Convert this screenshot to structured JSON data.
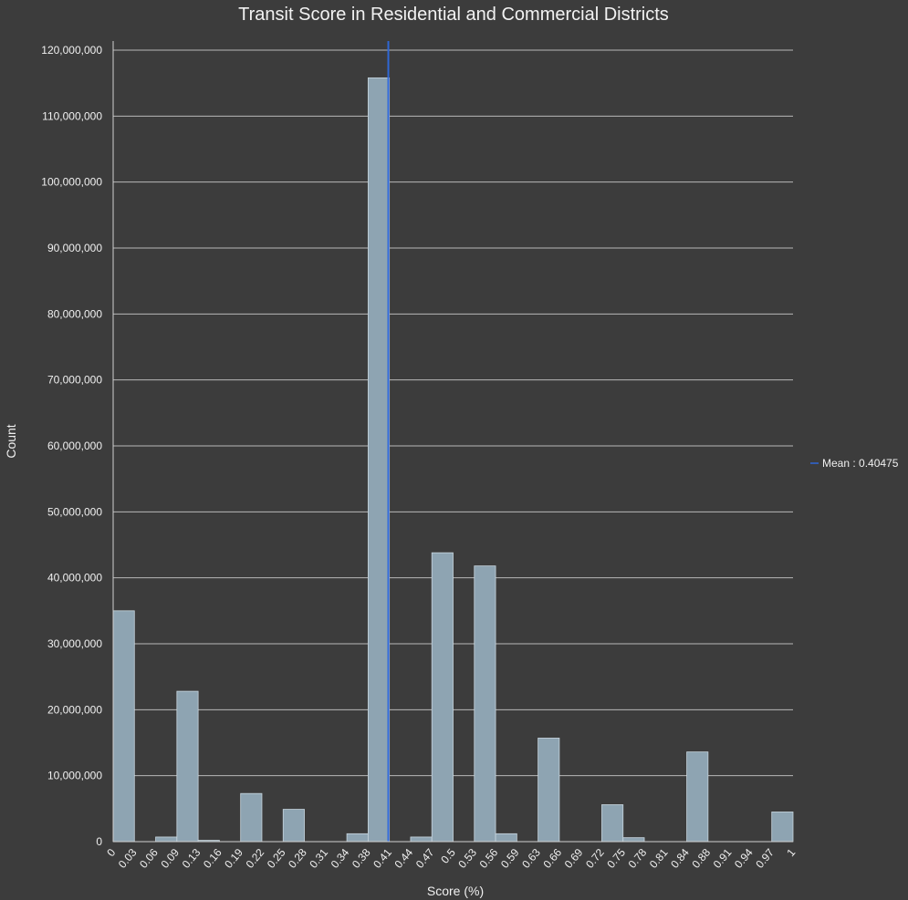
{
  "chart_data": {
    "type": "bar",
    "title": "Transit Score in Residential and Commercial Districts",
    "xlabel": "Score (%)",
    "ylabel": "Count",
    "ylim": [
      0,
      120000000
    ],
    "y_ticks": [
      "0",
      "10,000,000",
      "20,000,000",
      "30,000,000",
      "40,000,000",
      "50,000,000",
      "60,000,000",
      "70,000,000",
      "80,000,000",
      "90,000,000",
      "100,000,000",
      "110,000,000",
      "120,000,000"
    ],
    "x_tick_labels": [
      "0",
      "0.03",
      "0.06",
      "0.09",
      "0.13",
      "0.16",
      "0.19",
      "0.22",
      "0.25",
      "0.28",
      "0.31",
      "0.34",
      "0.38",
      "0.41",
      "0.44",
      "0.47",
      "0.5",
      "0.53",
      "0.56",
      "0.59",
      "0.63",
      "0.66",
      "0.69",
      "0.72",
      "0.75",
      "0.78",
      "0.81",
      "0.84",
      "0.88",
      "0.91",
      "0.94",
      "0.97",
      "1"
    ],
    "bins": 32,
    "x_range": [
      0,
      1
    ],
    "values": [
      35000000,
      0,
      700000,
      22800000,
      200000,
      0,
      7300000,
      0,
      4900000,
      0,
      0,
      1200000,
      115800000,
      0,
      700000,
      43800000,
      0,
      41800000,
      1200000,
      0,
      15700000,
      0,
      0,
      5600000,
      600000,
      0,
      0,
      13600000,
      0,
      0,
      0,
      4500000
    ],
    "mean": {
      "value": 0.40475,
      "label": "Mean : 0.40475"
    },
    "grid": true,
    "legend_position": "right",
    "colors": {
      "bar_fill": "#8ea4b2",
      "bar_stroke": "#c8d6df",
      "mean_line": "#2f67d6",
      "grid": "#b8b8b8",
      "background": "#3c3c3c"
    }
  }
}
